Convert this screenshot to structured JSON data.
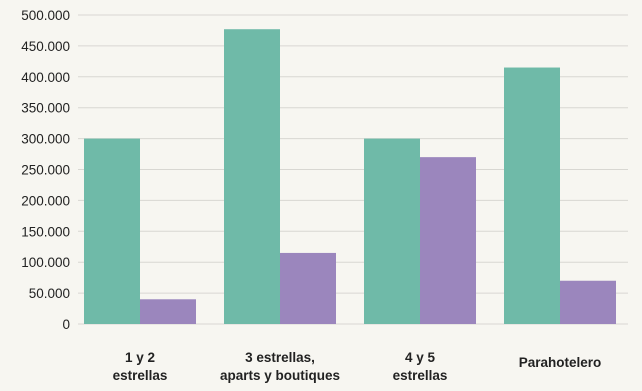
{
  "chart_data": {
    "type": "bar",
    "categories": [
      [
        "1 y 2",
        "estrellas"
      ],
      [
        "3 estrellas,",
        "aparts y boutiques"
      ],
      [
        "4 y 5",
        "estrellas"
      ],
      [
        "Parahotelero"
      ]
    ],
    "series": [
      {
        "values": [
          300000,
          477000,
          300000,
          415000
        ],
        "color": "#6fbaa8"
      },
      {
        "values": [
          40000,
          115000,
          270000,
          70000
        ],
        "color": "#9b86bd"
      }
    ],
    "y_ticks": [
      "0",
      "50.000",
      "100.000",
      "150.000",
      "200.000",
      "250.000",
      "300.000",
      "350.000",
      "400.000",
      "450.000",
      "500.000"
    ],
    "ylim": [
      0,
      500000
    ],
    "grid": true,
    "legend": "none"
  },
  "colors": {
    "background": "#f7f6f1",
    "grid": "#d8d7d2",
    "text": "#222222"
  }
}
